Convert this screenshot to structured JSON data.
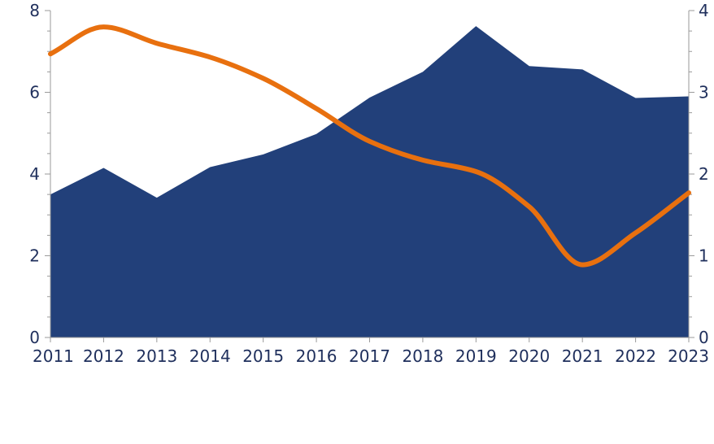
{
  "chart_data": {
    "type": "area+line",
    "title": "",
    "xlabel": "",
    "ylabel_left": "",
    "ylabel_right": "",
    "x": [
      "2011",
      "2012",
      "2013",
      "2014",
      "2015",
      "2016",
      "2017",
      "2018",
      "2019",
      "2020",
      "2021",
      "2022",
      "2023"
    ],
    "left_axis": {
      "ylim": [
        0,
        8
      ],
      "ticks": [
        "0",
        "2",
        "4",
        "6",
        "8"
      ]
    },
    "right_axis": {
      "ylim": [
        0,
        4
      ],
      "ticks": [
        "0",
        "1",
        "2",
        "3",
        "4"
      ]
    },
    "series": [
      {
        "type": "area",
        "axis": "left",
        "color": "#22407a",
        "values": [
          3.5,
          4.15,
          3.42,
          4.17,
          4.48,
          4.98,
          5.87,
          6.5,
          7.62,
          6.64,
          6.56,
          5.86,
          5.9
        ]
      },
      {
        "type": "line",
        "axis": "right",
        "color": "#e8700f",
        "values": [
          3.47,
          3.8,
          3.6,
          3.43,
          3.17,
          2.8,
          2.4,
          2.17,
          2.03,
          1.6,
          0.89,
          1.28,
          1.77
        ]
      }
    ],
    "grid": false,
    "legend": "none"
  }
}
